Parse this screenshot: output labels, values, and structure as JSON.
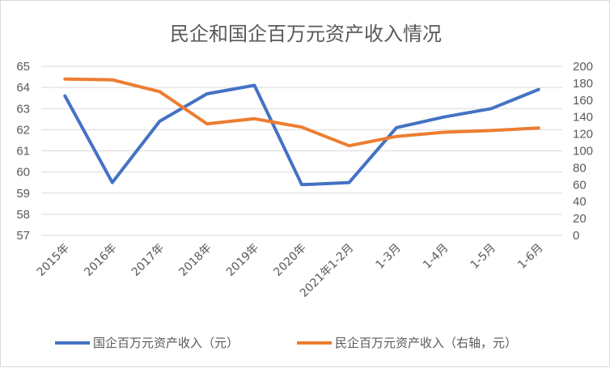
{
  "chart_data": {
    "type": "line",
    "title": "民企和国企百万元资产收入情况",
    "categories": [
      "2015年",
      "2016年",
      "2017年",
      "2018年",
      "2019年",
      "2020年",
      "2021年1-2月",
      "1-3月",
      "1-4月",
      "1-5月",
      "1-6月"
    ],
    "y_left": {
      "min": 57,
      "max": 65,
      "ticks": [
        "57",
        "58",
        "59",
        "60",
        "61",
        "62",
        "63",
        "64",
        "65"
      ]
    },
    "y_right": {
      "min": 0,
      "max": 200,
      "ticks": [
        "0",
        "20",
        "40",
        "60",
        "80",
        "100",
        "120",
        "140",
        "160",
        "180",
        "200"
      ]
    },
    "grid": true,
    "legend_position": "bottom",
    "series": [
      {
        "name": "国企百万元资产收入（元）",
        "axis": "left",
        "color": "#4472C4",
        "values": [
          63.6,
          59.5,
          62.4,
          63.7,
          64.1,
          59.4,
          59.5,
          62.1,
          62.6,
          63.0,
          63.9
        ]
      },
      {
        "name": "民企百万元资产收入（右轴，元）",
        "axis": "right",
        "color": "#ED7D31",
        "values": [
          185,
          184,
          170,
          132,
          138,
          128,
          106,
          117,
          122,
          124,
          127
        ]
      }
    ]
  }
}
